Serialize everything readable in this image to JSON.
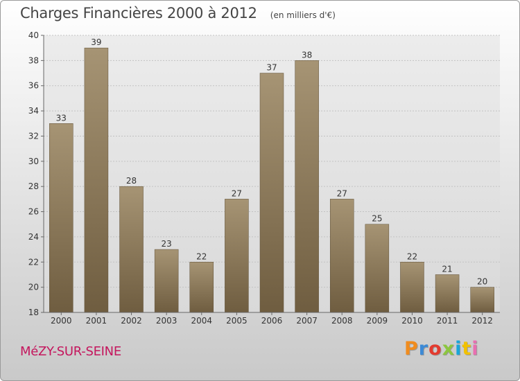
{
  "header": {
    "title": "Charges Financières 2000 à 2012",
    "subtitle": "(en milliers d'€)"
  },
  "footer": {
    "town": "MéZY-SUR-SEINE",
    "logo_text": "Proxiti",
    "logo_colors": [
      "#f08c1e",
      "#3c8ad6",
      "#e33b2f",
      "#8cc63f",
      "#1aa6d9",
      "#f2c100",
      "#e86fb0"
    ]
  },
  "chart_data": {
    "type": "bar",
    "categories": [
      "2000",
      "2001",
      "2002",
      "2003",
      "2004",
      "2005",
      "2006",
      "2007",
      "2008",
      "2009",
      "2010",
      "2011",
      "2012"
    ],
    "values": [
      33,
      39,
      28,
      23,
      22,
      27,
      37,
      38,
      27,
      25,
      22,
      21,
      20
    ],
    "title": "Charges Financières 2000 à 2012",
    "ylim": [
      18,
      40
    ],
    "yticks": [
      18,
      20,
      22,
      24,
      26,
      28,
      30,
      32,
      34,
      36,
      38,
      40
    ],
    "grid": true,
    "bar_color_top": "#a69474",
    "bar_color_bottom": "#6f5d40"
  }
}
